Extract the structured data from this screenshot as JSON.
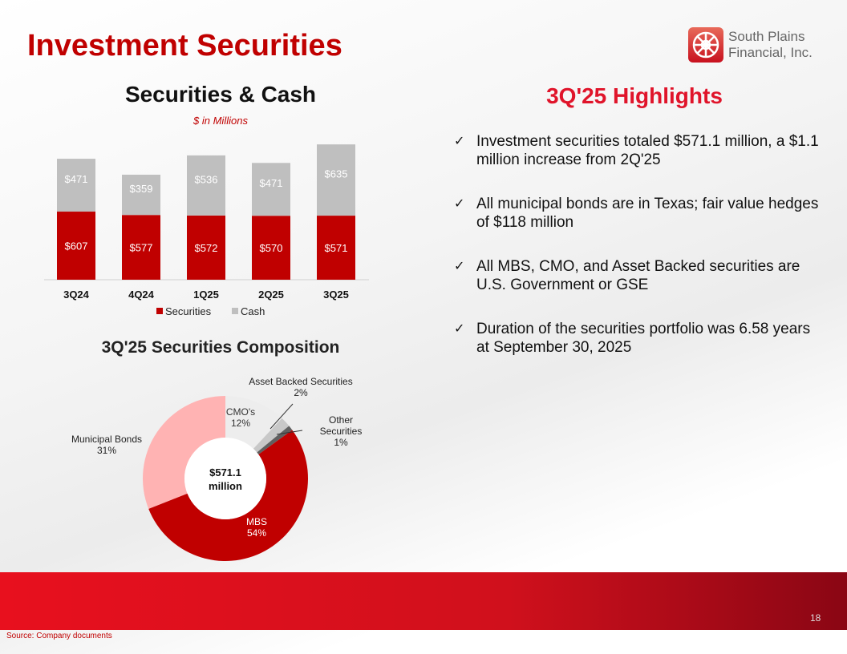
{
  "title": "Investment Securities",
  "logo": {
    "text_line1": "South Plains",
    "text_line2": "Financial, Inc."
  },
  "highlights": {
    "title": "3Q'25 Highlights",
    "bullets": [
      "Investment securities totaled $571.1 million, a $1.1 million increase from 2Q'25",
      "All municipal bonds are in Texas; fair value hedges of $118 million",
      "All MBS, CMO, and Asset Backed securities are U.S. Government or GSE",
      "Duration of the securities portfolio was 6.58 years at September 30, 2025"
    ],
    "check_icon": "✓"
  },
  "page_number": "18",
  "source": "Source: Company documents",
  "chart_data": [
    {
      "type": "bar",
      "stacked": true,
      "title": "Securities & Cash",
      "subtitle": "$ in Millions",
      "categories": [
        "3Q24",
        "4Q24",
        "1Q25",
        "2Q25",
        "3Q25"
      ],
      "series": [
        {
          "name": "Securities",
          "values": [
            607,
            577,
            572,
            570,
            571
          ],
          "color": "#c00000",
          "labels": [
            "$607",
            "$577",
            "$572",
            "$570",
            "$571"
          ]
        },
        {
          "name": "Cash",
          "values": [
            471,
            359,
            536,
            471,
            635
          ],
          "color": "#bfbfbf",
          "labels": [
            "$471",
            "$359",
            "$536",
            "$471",
            "$635"
          ]
        }
      ],
      "legend": "bottom",
      "grid": false
    },
    {
      "type": "pie",
      "donut": true,
      "title": "3Q'25 Securities Composition",
      "center_label": [
        "$571.1",
        "million"
      ],
      "slices": [
        {
          "name": "CMO's",
          "value": 12,
          "label": "12%",
          "color": "#ededed"
        },
        {
          "name": "Asset Backed Securities",
          "value": 2,
          "label": "2%",
          "color": "#c8c8c8"
        },
        {
          "name": "Other Securities",
          "value": 1,
          "label": "1%",
          "color": "#606060"
        },
        {
          "name": "MBS",
          "value": 54,
          "label": "54%",
          "color": "#c00000"
        },
        {
          "name": "Municipal Bonds",
          "value": 31,
          "label": "31%",
          "color": "#ffb3b3"
        }
      ]
    }
  ]
}
